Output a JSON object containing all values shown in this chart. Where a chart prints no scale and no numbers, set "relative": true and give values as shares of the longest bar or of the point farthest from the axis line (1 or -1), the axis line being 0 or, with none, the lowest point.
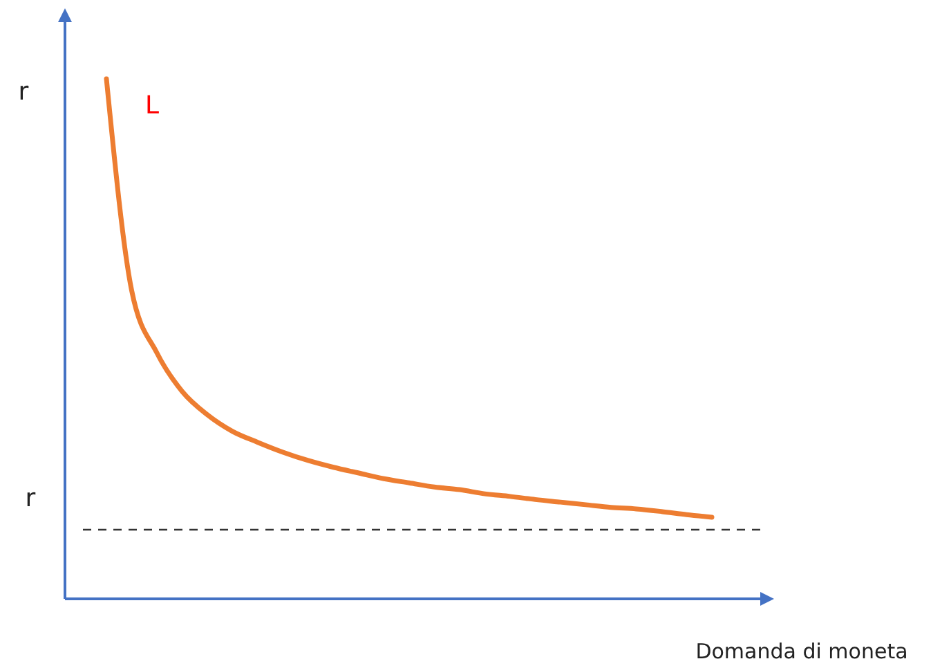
{
  "chart_data": {
    "type": "line",
    "relative": true,
    "ylabel": "r",
    "xlabel": "Domanda di moneta",
    "categories": [
      null,
      null,
      null,
      null,
      null,
      null,
      null,
      null,
      null,
      null,
      null,
      null,
      null,
      null,
      null,
      null,
      null,
      null,
      null,
      null,
      null,
      null,
      null,
      null,
      null
    ],
    "series": [
      {
        "name": "L",
        "color": "#ed7d31",
        "values": [
          1,
          0.593,
          0.473,
          0.399,
          0.354,
          0.322,
          0.301,
          0.282,
          0.266,
          0.253,
          0.242,
          0.231,
          0.223,
          0.215,
          0.21,
          0.202,
          0.197,
          0.191,
          0.186,
          0.181,
          0.176,
          0.173,
          0.168,
          0.162,
          0.157
        ]
      }
    ],
    "ref_lines": [
      {
        "axis": "y",
        "value": 0.133,
        "label": "r",
        "color": "#333333",
        "line_style": "dashed"
      }
    ],
    "grid": false,
    "marker": "none"
  }
}
